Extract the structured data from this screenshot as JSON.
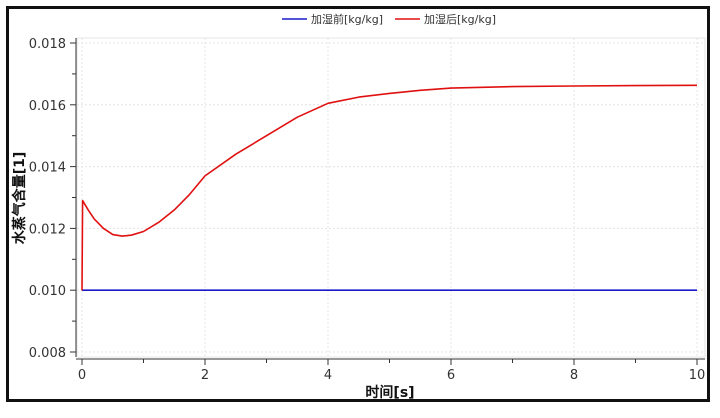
{
  "chart_data": {
    "type": "line",
    "title": "",
    "xlabel": "时间[s]",
    "ylabel": "水蒸气含量[1]",
    "xlim": [
      0,
      10
    ],
    "ylim": [
      0.008,
      0.018
    ],
    "xticks": [
      "0",
      "2",
      "4",
      "6",
      "8",
      "10"
    ],
    "yticks": [
      "0.008",
      "0.010",
      "0.012",
      "0.014",
      "0.016",
      "0.018"
    ],
    "grid": true,
    "legend_position": "top",
    "series": [
      {
        "name": "加湿前[kg/kg]",
        "color": "#1a1acc",
        "x": [
          0,
          10
        ],
        "y": [
          0.01,
          0.01
        ]
      },
      {
        "name": "加湿后[kg/kg]",
        "color": "#e01010",
        "x": [
          0,
          0.01,
          0.1,
          0.2,
          0.35,
          0.5,
          0.65,
          0.8,
          1.0,
          1.25,
          1.5,
          1.75,
          2.0,
          2.5,
          3.0,
          3.5,
          4.0,
          4.5,
          5.0,
          5.5,
          6.0,
          7.0,
          8.0,
          9.0,
          10.0
        ],
        "y": [
          0.01,
          0.0129,
          0.0126,
          0.0123,
          0.012,
          0.0118,
          0.01175,
          0.01178,
          0.0119,
          0.0122,
          0.0126,
          0.0131,
          0.0137,
          0.0144,
          0.015,
          0.0156,
          0.01605,
          0.01625,
          0.01637,
          0.01647,
          0.01654,
          0.01659,
          0.01661,
          0.01662,
          0.01663
        ]
      }
    ]
  }
}
